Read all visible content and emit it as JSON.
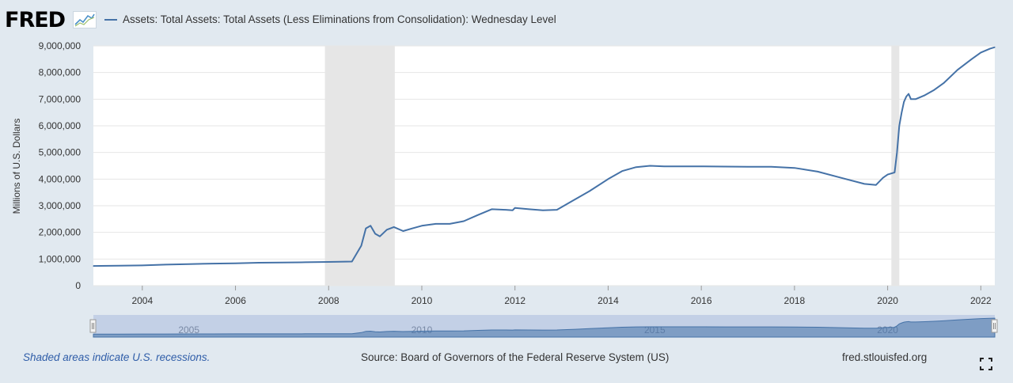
{
  "logo": {
    "text": "FRED"
  },
  "legend": {
    "label": "Assets: Total Assets: Total Assets (Less Eliminations from Consolidation): Wednesday Level"
  },
  "footer": {
    "recession_note": "Shaded areas indicate U.S. recessions.",
    "source": "Source: Board of Governors of the Federal Reserve System (US)",
    "site": "fred.stlouisfed.org"
  },
  "colors": {
    "series": "#4572a7",
    "recession": "#e6e6e6",
    "page_bg": "#e1e9f0",
    "navigator_fill": "#4572a7"
  },
  "icons": {
    "fullscreen": "fullscreen-icon",
    "logo_graph": "line-graph-icon"
  },
  "chart_data": {
    "type": "line",
    "title": "",
    "ylabel": "Millions of U.S. Dollars",
    "xlabel": "",
    "xlim": [
      2002.95,
      2022.3
    ],
    "ylim": [
      0,
      9000000
    ],
    "y_ticks": [
      {
        "value": 0,
        "label": "0"
      },
      {
        "value": 1000000,
        "label": "1,000,000"
      },
      {
        "value": 2000000,
        "label": "2,000,000"
      },
      {
        "value": 3000000,
        "label": "3,000,000"
      },
      {
        "value": 4000000,
        "label": "4,000,000"
      },
      {
        "value": 5000000,
        "label": "5,000,000"
      },
      {
        "value": 6000000,
        "label": "6,000,000"
      },
      {
        "value": 7000000,
        "label": "7,000,000"
      },
      {
        "value": 8000000,
        "label": "8,000,000"
      },
      {
        "value": 9000000,
        "label": "9,000,000"
      }
    ],
    "x_ticks": [
      {
        "value": 2004,
        "label": "2004"
      },
      {
        "value": 2006,
        "label": "2006"
      },
      {
        "value": 2008,
        "label": "2008"
      },
      {
        "value": 2010,
        "label": "2010"
      },
      {
        "value": 2012,
        "label": "2012"
      },
      {
        "value": 2014,
        "label": "2014"
      },
      {
        "value": 2016,
        "label": "2016"
      },
      {
        "value": 2018,
        "label": "2018"
      },
      {
        "value": 2020,
        "label": "2020"
      },
      {
        "value": 2022,
        "label": "2022"
      }
    ],
    "recessions": [
      {
        "start": 2007.92,
        "end": 2009.42
      },
      {
        "start": 2020.08,
        "end": 2020.25
      }
    ],
    "grid": true,
    "legend_position": "top-left",
    "navigator": {
      "labels": [
        {
          "value": 2005,
          "label": "2005"
        },
        {
          "value": 2010,
          "label": "2010"
        },
        {
          "value": 2015,
          "label": "2015"
        },
        {
          "value": 2020,
          "label": "2020"
        }
      ]
    },
    "series": [
      {
        "name": "Assets: Total Assets: Total Assets (Less Eliminations from Consolidation): Wednesday Level",
        "x": [
          2002.95,
          2003.5,
          2004.0,
          2004.5,
          2005.0,
          2005.5,
          2006.0,
          2006.5,
          2007.0,
          2007.5,
          2008.0,
          2008.5,
          2008.7,
          2008.8,
          2008.9,
          2009.0,
          2009.1,
          2009.25,
          2009.4,
          2009.6,
          2009.8,
          2010.0,
          2010.3,
          2010.6,
          2010.9,
          2011.2,
          2011.5,
          2011.8,
          2011.95,
          2012.0,
          2012.3,
          2012.6,
          2012.9,
          2013.0,
          2013.3,
          2013.6,
          2014.0,
          2014.3,
          2014.6,
          2014.9,
          2015.2,
          2015.5,
          2016.0,
          2016.5,
          2017.0,
          2017.5,
          2018.0,
          2018.5,
          2019.0,
          2019.5,
          2019.75,
          2019.9,
          2020.0,
          2020.15,
          2020.2,
          2020.25,
          2020.3,
          2020.35,
          2020.4,
          2020.45,
          2020.5,
          2020.6,
          2020.8,
          2021.0,
          2021.2,
          2021.5,
          2021.8,
          2022.0,
          2022.2,
          2022.3
        ],
        "values": [
          740000,
          750000,
          760000,
          790000,
          810000,
          830000,
          840000,
          860000,
          870000,
          880000,
          890000,
          905000,
          1500000,
          2150000,
          2250000,
          1950000,
          1850000,
          2100000,
          2200000,
          2050000,
          2150000,
          2250000,
          2320000,
          2320000,
          2420000,
          2650000,
          2870000,
          2850000,
          2830000,
          2920000,
          2870000,
          2830000,
          2850000,
          2950000,
          3250000,
          3550000,
          4000000,
          4300000,
          4450000,
          4500000,
          4480000,
          4480000,
          4480000,
          4470000,
          4460000,
          4460000,
          4420000,
          4280000,
          4050000,
          3820000,
          3780000,
          4050000,
          4170000,
          4250000,
          5000000,
          6000000,
          6500000,
          6900000,
          7100000,
          7200000,
          7000000,
          7000000,
          7150000,
          7350000,
          7600000,
          8100000,
          8500000,
          8750000,
          8900000,
          8950000
        ]
      }
    ]
  }
}
